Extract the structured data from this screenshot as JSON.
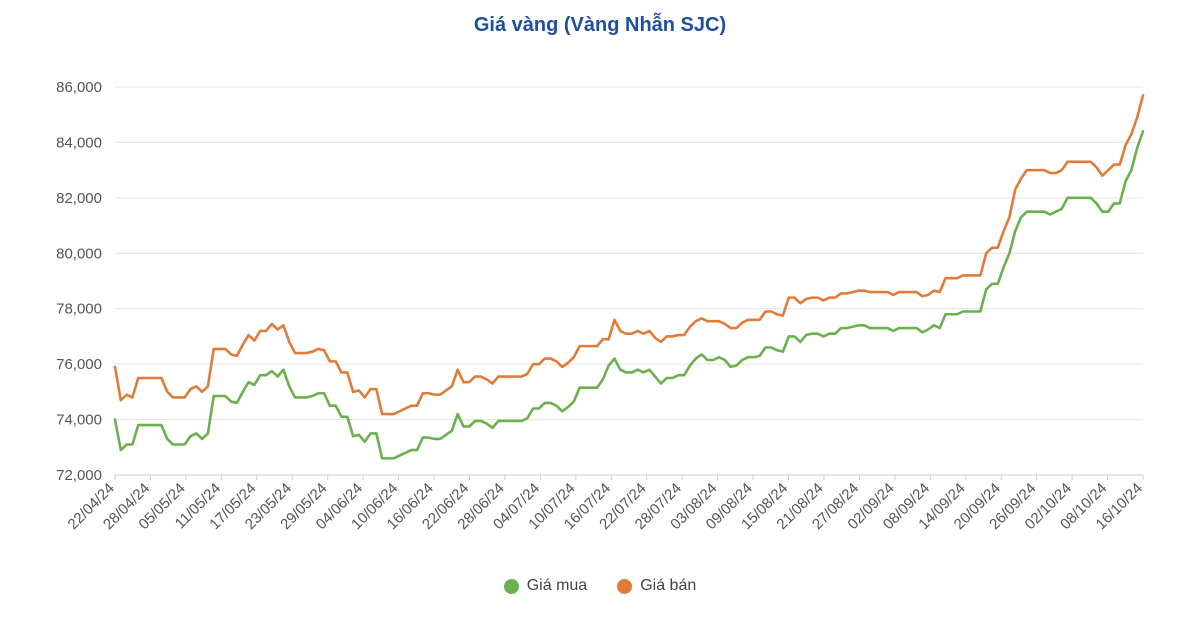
{
  "chart_data": {
    "type": "line",
    "title": "Giá vàng (Vàng Nhẫn SJC)",
    "xlabel": "",
    "ylabel": "",
    "ylim": [
      72000,
      86000
    ],
    "yticks": [
      72000,
      74000,
      76000,
      78000,
      80000,
      82000,
      84000,
      86000
    ],
    "ytick_labels": [
      "72,000",
      "74,000",
      "76,000",
      "78,000",
      "80,000",
      "82,000",
      "84,000",
      "86,000"
    ],
    "xticks": [
      "22/04/24",
      "28/04/24",
      "05/05/24",
      "11/05/24",
      "17/05/24",
      "23/05/24",
      "29/05/24",
      "04/06/24",
      "10/06/24",
      "16/06/24",
      "22/06/24",
      "28/06/24",
      "04/07/24",
      "10/07/24",
      "16/07/24",
      "22/07/24",
      "28/07/24",
      "03/08/24",
      "09/08/24",
      "15/08/24",
      "21/08/24",
      "27/08/24",
      "02/09/24",
      "08/09/24",
      "14/09/24",
      "20/09/24",
      "26/09/24",
      "02/10/24",
      "08/10/24",
      "16/10/24"
    ],
    "grid": true,
    "legend_position": "bottom-center",
    "series": [
      {
        "name": "Giá mua",
        "color": "#6ab04c",
        "values": [
          74000,
          72900,
          73100,
          73100,
          73800,
          73800,
          73800,
          73800,
          73800,
          73300,
          73100,
          73100,
          73100,
          73400,
          73500,
          73300,
          73500,
          74850,
          74850,
          74850,
          74650,
          74600,
          75000,
          75350,
          75250,
          75600,
          75600,
          75750,
          75550,
          75800,
          75200,
          74800,
          74800,
          74800,
          74850,
          74950,
          74950,
          74500,
          74500,
          74100,
          74100,
          73400,
          73450,
          73200,
          73500,
          73500,
          72600,
          72600,
          72600,
          72700,
          72800,
          72900,
          72900,
          73350,
          73350,
          73300,
          73300,
          73450,
          73600,
          74200,
          73750,
          73750,
          73950,
          73950,
          73850,
          73700,
          73950,
          73950,
          73950,
          73950,
          73950,
          74050,
          74400,
          74400,
          74600,
          74600,
          74500,
          74300,
          74450,
          74650,
          75150,
          75150,
          75150,
          75150,
          75450,
          75950,
          76200,
          75800,
          75700,
          75700,
          75800,
          75700,
          75800,
          75550,
          75300,
          75500,
          75500,
          75600,
          75600,
          75950,
          76200,
          76350,
          76150,
          76150,
          76250,
          76150,
          75900,
          75950,
          76150,
          76250,
          76250,
          76300,
          76600,
          76600,
          76500,
          76450,
          77000,
          77000,
          76800,
          77050,
          77100,
          77100,
          77000,
          77100,
          77100,
          77300,
          77300,
          77350,
          77400,
          77400,
          77300,
          77300,
          77300,
          77300,
          77200,
          77300,
          77300,
          77300,
          77300,
          77150,
          77250,
          77400,
          77300,
          77800,
          77800,
          77800,
          77900,
          77900,
          77900,
          77900,
          78700,
          78900,
          78900,
          79500,
          80000,
          80800,
          81300,
          81500,
          81500,
          81500,
          81500,
          81400,
          81500,
          81600,
          82000,
          82000,
          82000,
          82000,
          82000,
          81800,
          81500,
          81500,
          81800,
          81800,
          82600,
          83000,
          83800,
          84400
        ]
      },
      {
        "name": "Giá bán",
        "color": "#e07b39",
        "values": [
          75900,
          74700,
          74900,
          74800,
          75500,
          75500,
          75500,
          75500,
          75500,
          75000,
          74800,
          74800,
          74800,
          75100,
          75200,
          75000,
          75200,
          76550,
          76550,
          76550,
          76350,
          76300,
          76700,
          77050,
          76850,
          77200,
          77200,
          77450,
          77250,
          77400,
          76800,
          76400,
          76400,
          76400,
          76450,
          76550,
          76500,
          76100,
          76100,
          75700,
          75700,
          75000,
          75050,
          74800,
          75100,
          75100,
          74200,
          74200,
          74200,
          74300,
          74400,
          74500,
          74500,
          74950,
          74950,
          74900,
          74900,
          75050,
          75200,
          75800,
          75350,
          75350,
          75550,
          75550,
          75450,
          75300,
          75550,
          75550,
          75550,
          75550,
          75550,
          75650,
          76000,
          76000,
          76200,
          76200,
          76100,
          75900,
          76050,
          76250,
          76650,
          76650,
          76650,
          76650,
          76900,
          76900,
          77600,
          77200,
          77100,
          77100,
          77200,
          77100,
          77200,
          76950,
          76800,
          77000,
          77000,
          77050,
          77050,
          77350,
          77550,
          77650,
          77550,
          77550,
          77550,
          77450,
          77300,
          77300,
          77500,
          77600,
          77600,
          77600,
          77900,
          77900,
          77800,
          77750,
          78400,
          78400,
          78200,
          78350,
          78400,
          78400,
          78300,
          78400,
          78400,
          78550,
          78550,
          78600,
          78650,
          78650,
          78600,
          78600,
          78600,
          78600,
          78500,
          78600,
          78600,
          78600,
          78600,
          78450,
          78500,
          78650,
          78600,
          79100,
          79100,
          79100,
          79200,
          79200,
          79200,
          79200,
          80000,
          80200,
          80200,
          80800,
          81300,
          82300,
          82700,
          83000,
          83000,
          83000,
          83000,
          82900,
          82900,
          83000,
          83300,
          83300,
          83300,
          83300,
          83300,
          83100,
          82800,
          83000,
          83200,
          83200,
          83900,
          84300,
          84900,
          85700
        ]
      }
    ]
  }
}
